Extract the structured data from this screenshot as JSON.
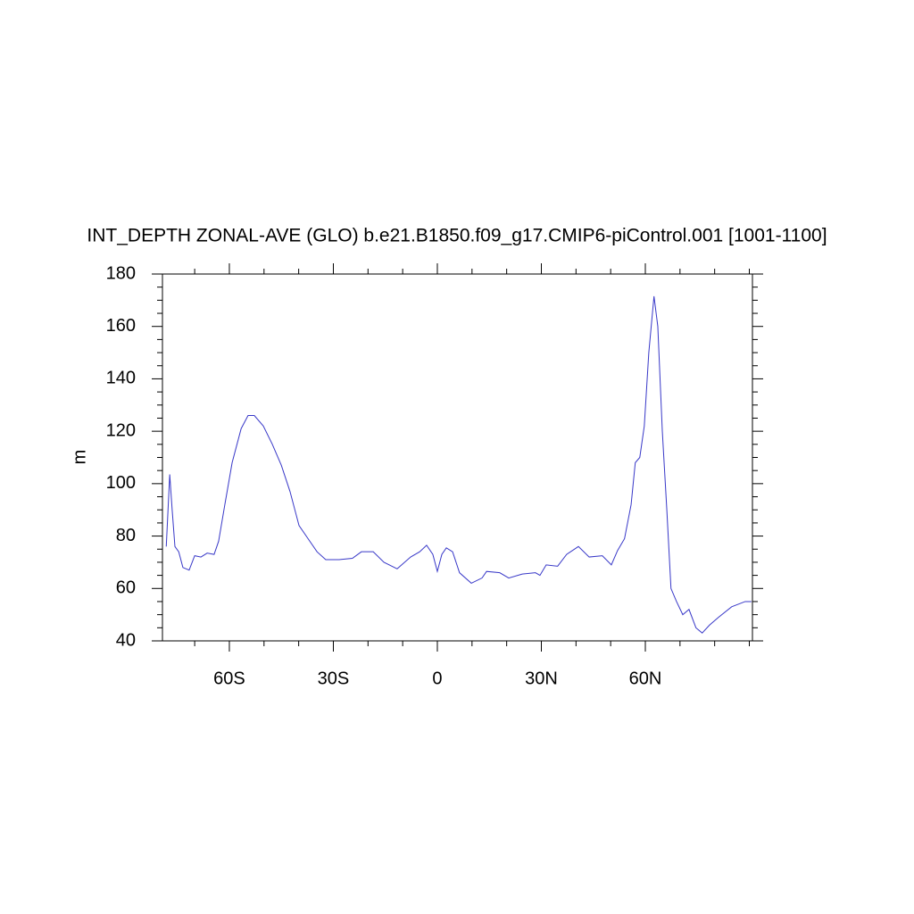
{
  "chart_data": {
    "type": "line",
    "title": "INT_DEPTH ZONAL-AVE (GLO) b.e21.B1850.f09_g17.CMIP6-piControl.001 [1001-1100]",
    "ylabel": "m",
    "xlim": [
      -79.3,
      90.9
    ],
    "ylim": [
      40,
      180
    ],
    "xticks": [
      {
        "value": -60,
        "label": "60S"
      },
      {
        "value": -30,
        "label": "30S"
      },
      0,
      {
        "value": 30,
        "label": "30N"
      },
      {
        "value": 60,
        "label": "60N"
      }
    ],
    "yticks": [
      40,
      60,
      80,
      100,
      120,
      140,
      160,
      180
    ],
    "xminorticks": [
      -70,
      -50,
      -40,
      -20,
      -10,
      10,
      20,
      40,
      50,
      70,
      80,
      90
    ],
    "yminorticks": [
      45,
      50,
      55,
      65,
      70,
      75,
      85,
      90,
      95,
      105,
      110,
      115,
      125,
      130,
      135,
      145,
      150,
      155,
      165,
      170,
      175
    ],
    "series": [
      {
        "color": "#3838c8",
        "x": [
          -78.2,
          -77.2,
          -76.5,
          -75.7,
          -74.6,
          -73.4,
          -71.6,
          -70,
          -68.2,
          -66.4,
          -64.4,
          -63.1,
          -61.3,
          -59.2,
          -56.6,
          -54.6,
          -52.8,
          -50.2,
          -47.6,
          -45,
          -42.5,
          -39.9,
          -37.3,
          -34.7,
          -32.2,
          -28.3,
          -24.5,
          -21.9,
          -18.5,
          -15.4,
          -11.6,
          -7.7,
          -5.1,
          -3.1,
          -1.3,
          0,
          1.3,
          2.6,
          4.4,
          6.4,
          9.8,
          12.9,
          14.2,
          18,
          20.6,
          24.5,
          28.3,
          29.6,
          31.4,
          34.7,
          37.3,
          40.7,
          43.8,
          47.6,
          50.2,
          52,
          54,
          55.9,
          57.1,
          58.4,
          59.7,
          61,
          62.5,
          63.6,
          64.9,
          66.2,
          67.4,
          69,
          70.8,
          72.6,
          74.6,
          76.4,
          78.5,
          81.1,
          84.9,
          88.8,
          90.6
        ],
        "values": [
          76,
          103.5,
          90,
          76,
          74,
          68,
          67,
          72.5,
          72,
          73.5,
          73,
          78,
          92,
          108,
          121,
          126,
          126,
          122,
          115,
          107,
          97,
          84,
          79,
          74,
          71,
          71,
          71.5,
          74,
          74,
          70,
          67.5,
          72,
          74,
          76.5,
          73,
          66.5,
          73,
          75.5,
          74,
          66,
          62,
          64,
          66.5,
          66,
          64,
          65.5,
          66,
          65,
          69,
          68.5,
          73,
          76,
          72,
          72.5,
          69,
          74.5,
          79,
          92,
          108,
          110,
          122,
          150,
          171.5,
          160,
          120,
          90,
          60,
          55,
          50,
          52,
          45,
          43,
          46,
          49,
          53,
          55,
          55
        ]
      }
    ]
  }
}
